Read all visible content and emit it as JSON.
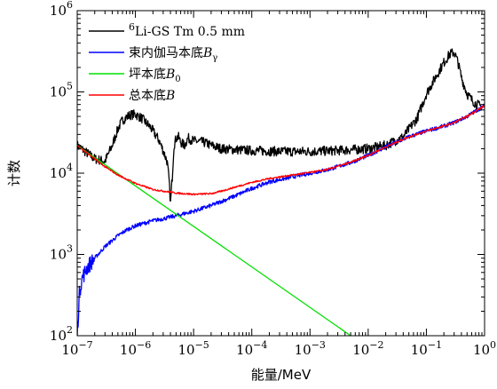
{
  "chart_data": {
    "type": "line",
    "xlabel": "能量/MeV",
    "ylabel": "计数",
    "x_scale": "log",
    "y_scale": "log",
    "xlim": [
      1e-07,
      1
    ],
    "ylim": [
      100,
      1000000
    ],
    "x_ticks": [
      {
        "value": 1e-07,
        "base": "10",
        "exp": "−7"
      },
      {
        "value": 1e-06,
        "base": "10",
        "exp": "−6"
      },
      {
        "value": 1e-05,
        "base": "10",
        "exp": "−5"
      },
      {
        "value": 0.0001,
        "base": "10",
        "exp": "−4"
      },
      {
        "value": 0.001,
        "base": "10",
        "exp": "−3"
      },
      {
        "value": 0.01,
        "base": "10",
        "exp": "−2"
      },
      {
        "value": 0.1,
        "base": "10",
        "exp": "−1"
      },
      {
        "value": 1,
        "base": "10",
        "exp": "0"
      }
    ],
    "y_ticks": [
      {
        "value": 100,
        "base": "10",
        "exp": "2"
      },
      {
        "value": 1000,
        "base": "10",
        "exp": "3"
      },
      {
        "value": 10000,
        "base": "10",
        "exp": "4"
      },
      {
        "value": 100000,
        "base": "10",
        "exp": "5"
      },
      {
        "value": 1000000,
        "base": "10",
        "exp": "6"
      }
    ],
    "legend_position": "top-left",
    "series": [
      {
        "name": "6Li-GS Tm 0.5 mm",
        "legend_parts": [
          {
            "t": "6",
            "sup": true
          },
          {
            "t": "Li-GS Tm 0.5 mm"
          }
        ],
        "color": "#000000",
        "noise": 0.12,
        "x": [
          1e-07,
          2e-07,
          3e-07,
          4e-07,
          5e-07,
          6e-07,
          8e-07,
          1e-06,
          1.3e-06,
          1.8e-06,
          2.5e-06,
          3e-06,
          3.5e-06,
          3.8e-06,
          4e-06,
          4.3e-06,
          4.6e-06,
          5e-06,
          5.5e-06,
          6e-06,
          7e-06,
          8e-06,
          1e-05,
          1.5e-05,
          2e-05,
          3e-05,
          5e-05,
          0.0001,
          0.0003,
          0.001,
          0.003,
          0.01,
          0.02,
          0.04,
          0.07,
          0.1,
          0.15,
          0.2,
          0.25,
          0.3,
          0.35,
          0.4,
          0.5,
          0.6,
          0.7,
          0.8,
          1
        ],
        "y": [
          22000,
          15000,
          14000,
          22000,
          35000,
          45000,
          52000,
          53000,
          47000,
          37000,
          26000,
          19000,
          14000,
          8000,
          4200,
          9000,
          22000,
          27000,
          28000,
          24000,
          22000,
          27000,
          25000,
          24000,
          22000,
          20000,
          19500,
          19000,
          18500,
          18500,
          19000,
          20000,
          22000,
          28000,
          48000,
          95000,
          160000,
          230000,
          290000,
          310000,
          230000,
          150000,
          95000,
          80000,
          72000,
          68000,
          65000
        ]
      },
      {
        "name": "束内伽马本底Bγ",
        "legend_parts": [
          {
            "t": "束内伽马本底"
          },
          {
            "t": "B",
            "it": true
          },
          {
            "t": "γ",
            "sub": true
          }
        ],
        "color": "#0000ff",
        "noise": 0.05,
        "x": [
          1e-07,
          1.1e-07,
          1.2e-07,
          1.5e-07,
          2e-07,
          3e-07,
          5e-07,
          7e-07,
          1e-06,
          1.5e-06,
          2e-06,
          3e-06,
          5e-06,
          1e-05,
          2e-05,
          5e-05,
          0.0001,
          0.0002,
          0.0005,
          0.001,
          0.002,
          0.005,
          0.01,
          0.02,
          0.05,
          0.1,
          0.2,
          0.3,
          0.5,
          0.7,
          1
        ],
        "y": [
          100,
          350,
          500,
          700,
          900,
          1250,
          1700,
          2000,
          2250,
          2450,
          2600,
          2750,
          3000,
          3400,
          4000,
          5200,
          6500,
          7800,
          9000,
          10000,
          11000,
          13500,
          16500,
          21000,
          28000,
          33000,
          38000,
          42000,
          50000,
          58000,
          68000
        ]
      },
      {
        "name": "坪本底B0",
        "legend_parts": [
          {
            "t": "坪本底"
          },
          {
            "t": "B",
            "it": true
          },
          {
            "t": "0",
            "sub": true
          }
        ],
        "color": "#00e000",
        "noise": 0,
        "x": [
          1e-07,
          0.005
        ],
        "y": [
          22000,
          100
        ]
      },
      {
        "name": "总本底B",
        "legend_parts": [
          {
            "t": "总本底"
          },
          {
            "t": "B",
            "it": true
          }
        ],
        "color": "#ff0000",
        "noise": 0.02,
        "x": [
          1e-07,
          2e-07,
          3e-07,
          5e-07,
          1e-06,
          2e-06,
          5e-06,
          1e-05,
          2e-05,
          3e-05,
          5e-05,
          0.0001,
          0.0002,
          0.0005,
          0.001,
          0.002,
          0.005,
          0.01,
          0.02,
          0.05,
          0.1,
          0.2,
          0.3,
          0.5,
          0.7,
          1
        ],
        "y": [
          22000,
          15000,
          12000,
          9500,
          7500,
          6300,
          5700,
          5500,
          5600,
          6000,
          6700,
          7700,
          8600,
          9500,
          10200,
          11100,
          13600,
          16600,
          21000,
          28000,
          33000,
          38000,
          42000,
          50000,
          58000,
          68000
        ]
      }
    ]
  }
}
